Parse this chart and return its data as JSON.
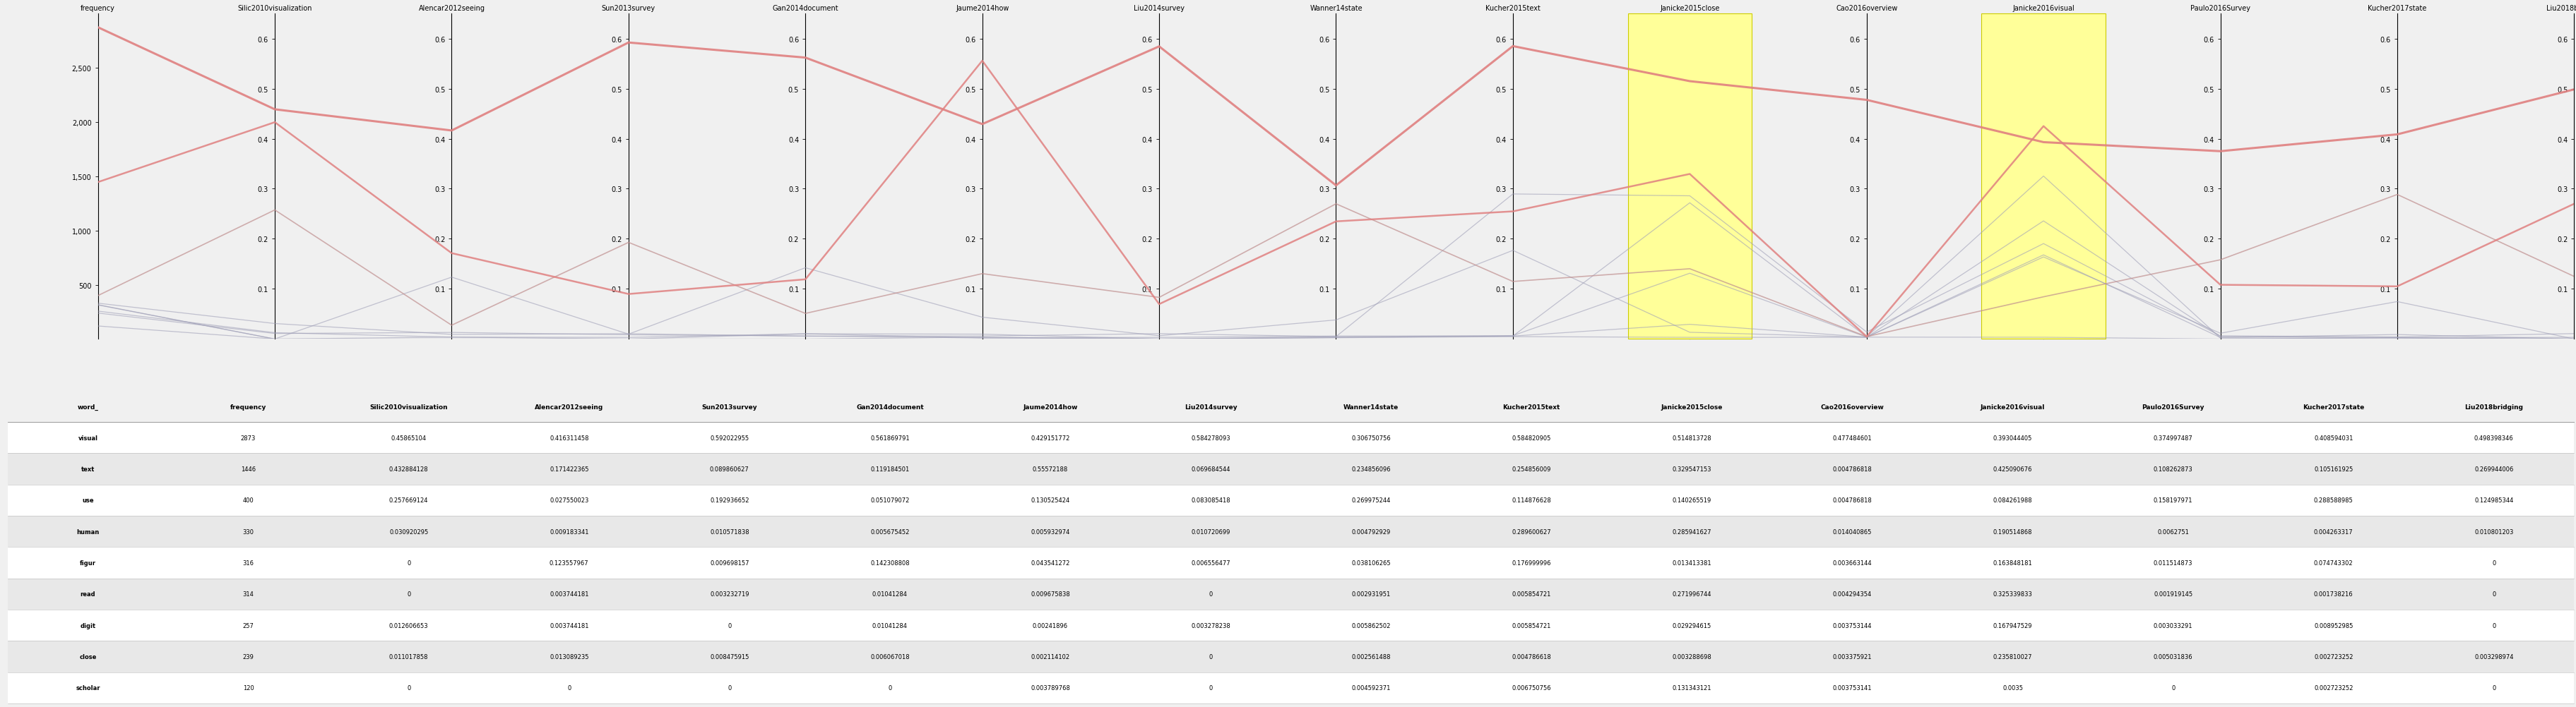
{
  "columns": [
    "frequency",
    "Silic2010visualization",
    "Alencar2012seeing",
    "Sun2013survey",
    "Gan2014document",
    "Jaume2014how",
    "Liu2014survey",
    "Wanner14state",
    "Kucher2015text",
    "Janicke2015close",
    "Cao2016overview",
    "Janicke2016visual",
    "Paulo2016Survey",
    "Kucher2017state",
    "Liu2018bridging"
  ],
  "words": [
    "visual",
    "text",
    "use",
    "human",
    "figur",
    "read",
    "digit",
    "close",
    "scholar"
  ],
  "data": {
    "visual": [
      2873,
      0.45865104,
      0.416311458,
      0.592022955,
      0.561869791,
      0.429151772,
      0.584278093,
      0.306750756,
      0.584820905,
      0.514813728,
      0.477484601,
      0.393044405,
      0.374997487,
      0.408594031,
      0.498398346
    ],
    "text": [
      1446,
      0.432884128,
      0.171422365,
      0.089860627,
      0.119184501,
      0.55572188,
      0.069684544,
      0.234856096,
      0.254856009,
      0.329547153,
      0.004786818,
      0.425090676,
      0.108262873,
      0.105161925,
      0.269944006
    ],
    "use": [
      400,
      0.257669124,
      0.027550023,
      0.192936652,
      0.051079072,
      0.130525424,
      0.083085418,
      0.269975244,
      0.114876628,
      0.140265519,
      0.004786818,
      0.084261988,
      0.158197971,
      0.288588985,
      0.124985344
    ],
    "human": [
      330,
      0.030920295,
      0.009183341,
      0.010571838,
      0.005675452,
      0.005932974,
      0.010720699,
      0.004792929,
      0.289600627,
      0.285941627,
      0.014040865,
      0.190514868,
      0.0062751,
      0.004263317,
      0.010801203
    ],
    "figur": [
      316,
      0,
      0.123557967,
      0.009698157,
      0.142308808,
      0.043541272,
      0.006556477,
      0.038106265,
      0.176999996,
      0.013413381,
      0.003663144,
      0.163848181,
      0.011514873,
      0.074743302,
      0
    ],
    "read": [
      314,
      0,
      0.003744181,
      0.003232719,
      0.01041284,
      0.009675838,
      0,
      0.002931951,
      0.005854721,
      0.271996744,
      0.004294354,
      0.325339833,
      0.001919145,
      0.001738216,
      0
    ],
    "digit": [
      257,
      0.012606653,
      0.003744181,
      0,
      0.01041284,
      0.00241896,
      0.003278238,
      0.005862502,
      0.005854721,
      0.029294615,
      0.003753144,
      0.167947529,
      0.003033291,
      0.008952985,
      0
    ],
    "close": [
      239,
      0.011017858,
      0.013089235,
      0.008475915,
      0.006067018,
      0.002114102,
      0,
      0.002561488,
      0.004786618,
      0.003288698,
      0.003375921,
      0.235810027,
      0.005031836,
      0.002723252,
      0.003298974
    ],
    "scholar": [
      120,
      0,
      0,
      0,
      0,
      0.003789768,
      0,
      0.004592371,
      0.006750756,
      0.131343121,
      0.003753141,
      0.0035,
      0.0,
      0.002723252,
      0
    ]
  },
  "freq_ylim": [
    0,
    3000
  ],
  "freq_yticks": [
    500,
    1000,
    1500,
    2000,
    2500
  ],
  "ratio_ylim": [
    0.0,
    0.65
  ],
  "ratio_yticks": [
    0.1,
    0.2,
    0.3,
    0.4,
    0.5,
    0.6
  ],
  "highlight_cols": [
    "Janicke2015close",
    "Janicke2016visual"
  ],
  "highlight_color": "#ffff99",
  "line_colors": {
    "visual": "#e08080",
    "text": "#e08080",
    "use": "#c09090",
    "human": "#a0a0b8",
    "figur": "#a0a0b8",
    "read": "#a0a0b8",
    "digit": "#a0a0b8",
    "close": "#a0a0b8",
    "scholar": "#a0a0b8"
  },
  "line_alphas": {
    "visual": 0.9,
    "text": 0.85,
    "use": 0.7,
    "human": 0.6,
    "figur": 0.6,
    "read": 0.6,
    "digit": 0.6,
    "close": 0.6,
    "scholar": 0.6
  },
  "line_widths": {
    "visual": 2.2,
    "text": 1.8,
    "use": 1.2,
    "human": 0.9,
    "figur": 0.9,
    "read": 0.9,
    "digit": 0.9,
    "close": 0.9,
    "scholar": 0.9
  },
  "bg_color": "#f0f0f0",
  "table_alt_colors": [
    "#ffffff",
    "#e8e8e8"
  ]
}
